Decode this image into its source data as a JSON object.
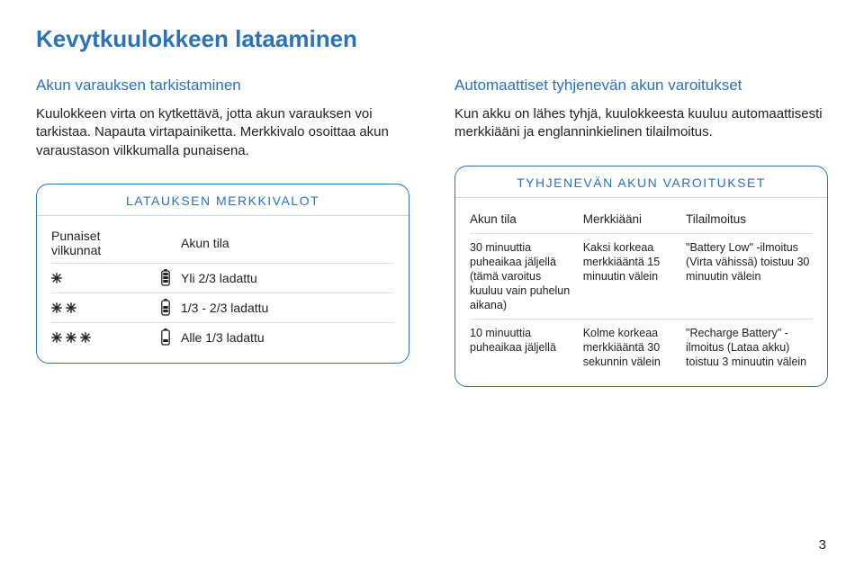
{
  "main_title": "Kevytkuulokkeen lataaminen",
  "page_number": "3",
  "left": {
    "section_title": "Akun varauksen tarkistaminen",
    "body": "Kuulokkeen virta on kytkettävä, jotta akun varauksen voi tarkistaa. Napauta virtapainiketta. Merkkivalo osoittaa akun varaustason vilkkumalla punaisena.",
    "box_title": "LATAUKSEN MERKKIVALOT",
    "header_col1": "Punaiset vilkunnat",
    "header_col3": "Akun tila",
    "rows": [
      {
        "flashes": 1,
        "battery_level": 3,
        "label": "Yli 2/3 ladattu"
      },
      {
        "flashes": 2,
        "battery_level": 2,
        "label": "1/3 - 2/3 ladattu"
      },
      {
        "flashes": 3,
        "battery_level": 1,
        "label": "Alle 1/3 ladattu"
      }
    ]
  },
  "right": {
    "section_title": "Automaattiset tyhjenevän akun varoitukset",
    "body": "Kun akku on lähes tyhjä, kuulokkeesta kuuluu automaattisesti merkkiääni ja englanninkielinen tilailmoitus.",
    "box_title": "TYHJENEVÄN AKUN VAROITUKSET",
    "header_c1": "Akun tila",
    "header_c2": "Merkkiääni",
    "header_c3": "Tilailmoitus",
    "rows": [
      {
        "c1": "30 minuuttia puheaikaa jäljellä (tämä varoitus kuuluu vain puhelun aikana)",
        "c2": "Kaksi korkeaa merkkiääntä 15 minuutin välein",
        "c3": "\"Battery Low\" -ilmoitus (Virta vähissä) toistuu 30 minuutin välein"
      },
      {
        "c1": "10 minuuttia puheaikaa jäljellä",
        "c2": "Kolme korkeaa merkkiääntä 30 sekunnin välein",
        "c3": "\"Recharge Battery\" -ilmoitus (Lataa akku) toistuu 3 minuutin välein"
      }
    ]
  },
  "colors": {
    "accent": "#2b73b8",
    "text": "#222222",
    "rule": "#d6e2ee"
  }
}
